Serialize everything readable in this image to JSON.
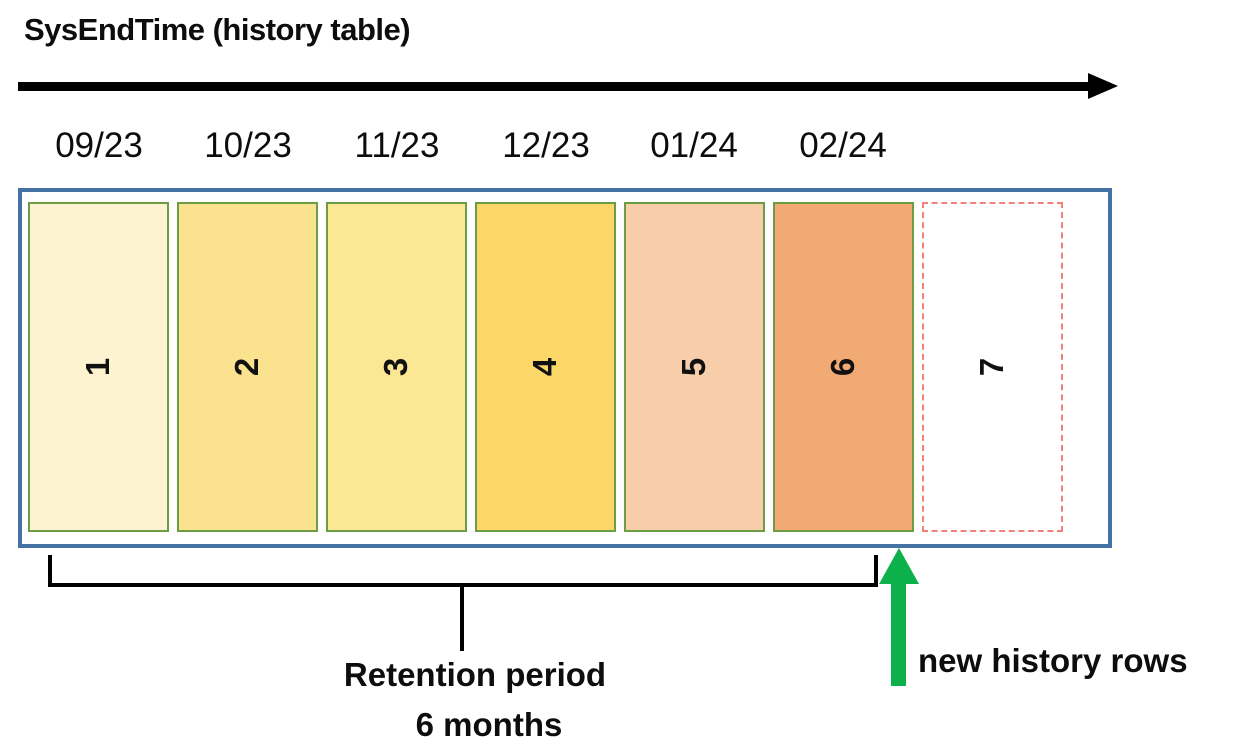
{
  "title": "SysEndTime (history table)",
  "timeline": {
    "months": [
      "09/23",
      "10/23",
      "11/23",
      "12/23",
      "01/24",
      "02/24"
    ],
    "arrow_color": "#000000"
  },
  "history_table": {
    "border_color": "#4472a4",
    "block_border_color": "#6c9c44",
    "dashed_border_color": "#f4807d",
    "blocks": [
      {
        "label": "1",
        "color": "#fdf3d1",
        "dashed": false
      },
      {
        "label": "2",
        "color": "#fbe28f",
        "dashed": false
      },
      {
        "label": "3",
        "color": "#fce795",
        "dashed": false
      },
      {
        "label": "4",
        "color": "#fad768",
        "dashed": false
      },
      {
        "label": "5",
        "color": "#f7cea9",
        "dashed": false
      },
      {
        "label": "6",
        "color": "#f1aa73",
        "dashed": false
      },
      {
        "label": "7",
        "color": "#ffffff",
        "dashed": true
      }
    ]
  },
  "retention": {
    "line1": "Retention period",
    "line2": "6 months"
  },
  "annotation": {
    "label": "new history rows",
    "arrow_color": "#0cb14b"
  }
}
